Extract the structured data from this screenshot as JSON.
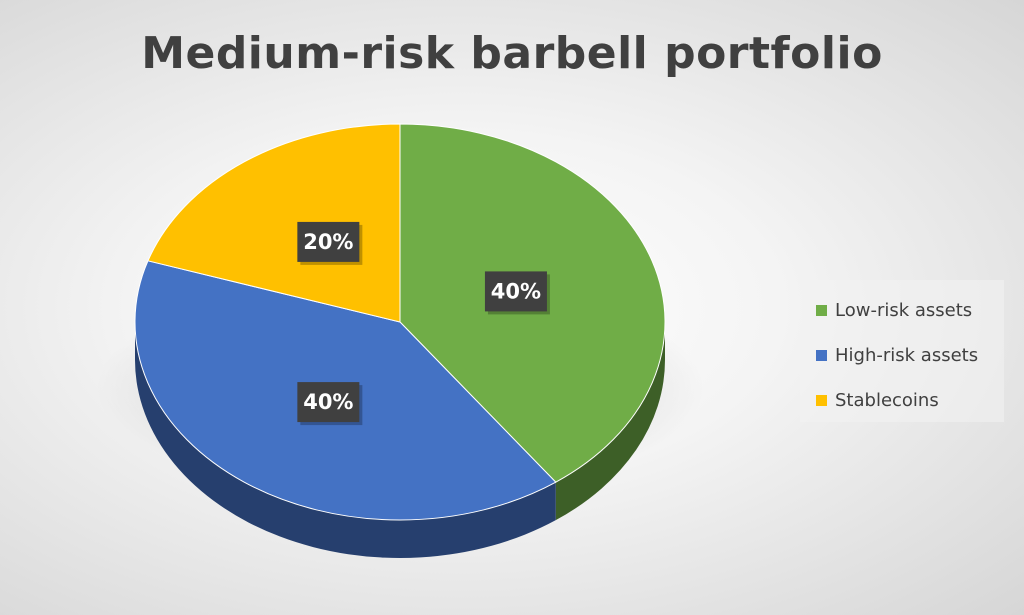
{
  "chart_data": {
    "type": "pie",
    "title": "Medium-risk barbell portfolio",
    "categories": [
      "Low-risk assets",
      "High-risk assets",
      "Stablecoins"
    ],
    "values": [
      40,
      40,
      20
    ],
    "data_labels": [
      "40%",
      "40%",
      "20%"
    ],
    "colors": [
      "#70ad47",
      "#4472c4",
      "#ffc000"
    ],
    "side_colors": [
      "#3d5f27",
      "#263f6e",
      "#8a6800"
    ],
    "legend_position": "right",
    "style": "3d-pie"
  }
}
